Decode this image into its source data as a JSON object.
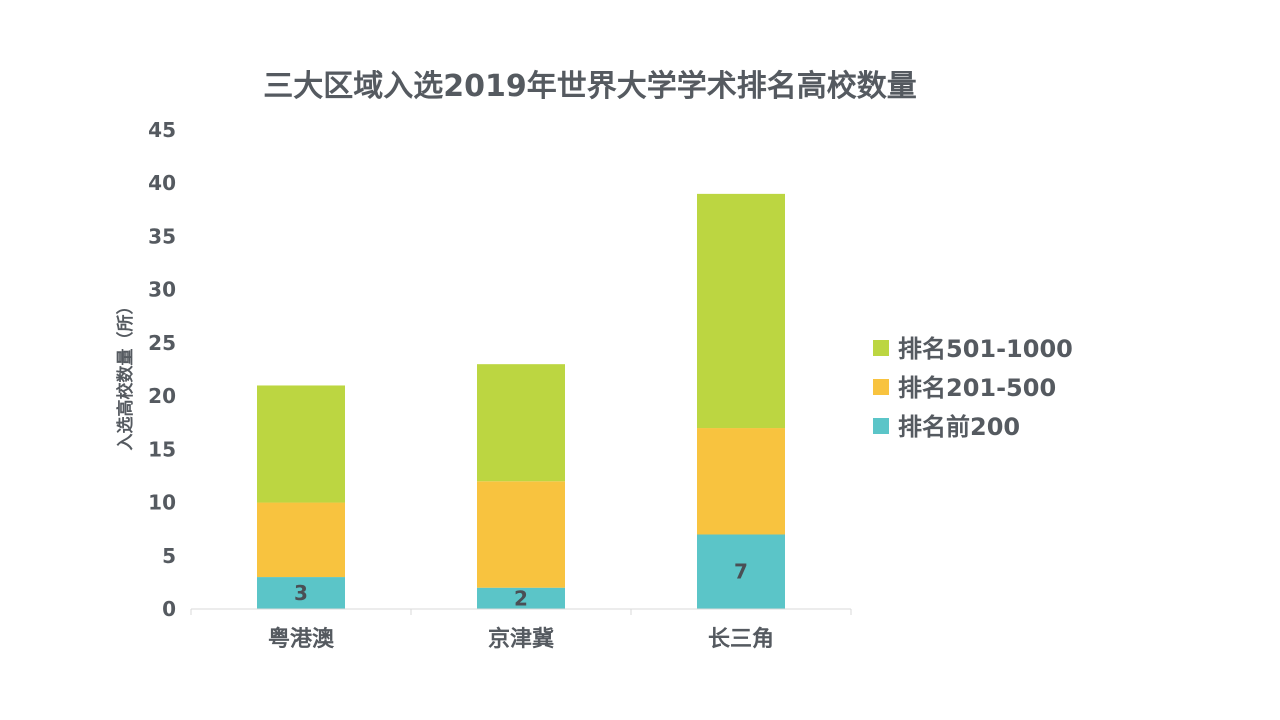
{
  "chart_data": {
    "type": "bar",
    "stacked": true,
    "title": "三大区域入选2019年世界大学学术排名高校数量",
    "ylabel": "入选高校数量（所）",
    "xlabel": "",
    "categories": [
      "粤港澳",
      "京津冀",
      "长三角"
    ],
    "ylim": [
      0,
      45
    ],
    "yticks": [
      0,
      5,
      10,
      15,
      20,
      25,
      30,
      35,
      40,
      45
    ],
    "grid": false,
    "legend_position": "right",
    "series": [
      {
        "name": "排名前200",
        "values": [
          3,
          2,
          7
        ],
        "color": "#5bc5c8",
        "show_labels": true
      },
      {
        "name": "排名201-500",
        "values": [
          7,
          10,
          10
        ],
        "color": "#f8c33f",
        "show_labels": false
      },
      {
        "name": "排名501-1000",
        "values": [
          11,
          11,
          22
        ],
        "color": "#bcd641",
        "show_labels": false
      }
    ]
  },
  "colors": {
    "text": "#555a60",
    "axis": "#d9d9d9"
  }
}
